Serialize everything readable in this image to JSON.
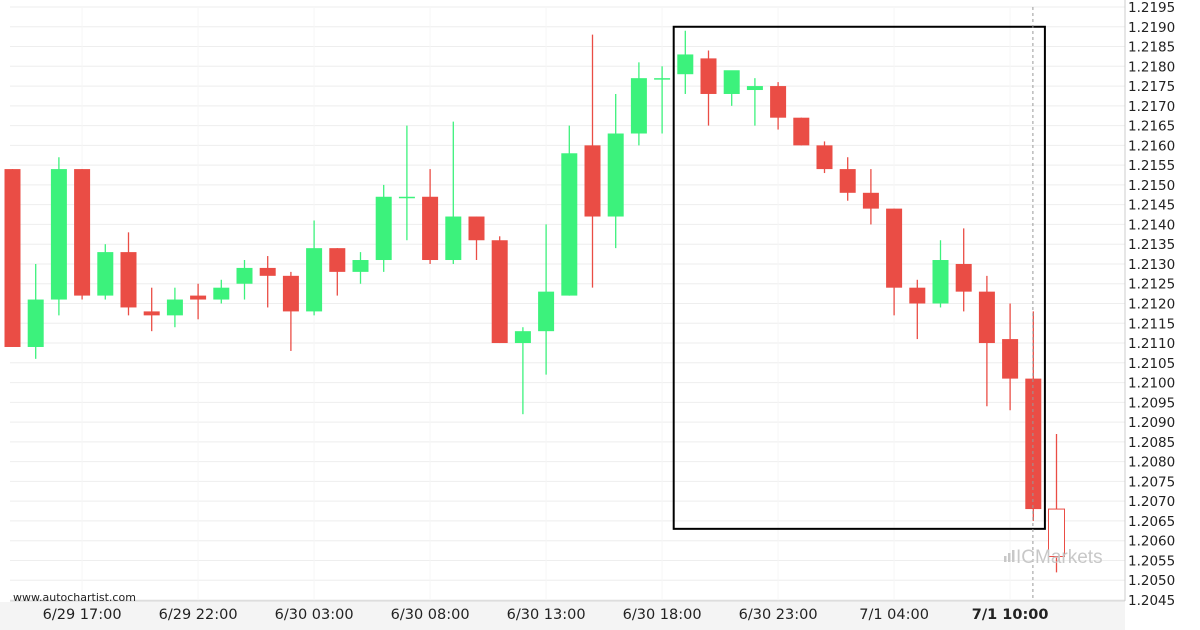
{
  "chart_data": {
    "type": "candlestick",
    "ylim": [
      1.2045,
      1.2195
    ],
    "yticks": [
      "1.2195",
      "1.2190",
      "1.2185",
      "1.2180",
      "1.2175",
      "1.2170",
      "1.2165",
      "1.2160",
      "1.2155",
      "1.2150",
      "1.2145",
      "1.2140",
      "1.2135",
      "1.2130",
      "1.2125",
      "1.2120",
      "1.2115",
      "1.2110",
      "1.2105",
      "1.2100",
      "1.2095",
      "1.2090",
      "1.2085",
      "1.2080",
      "1.2075",
      "1.2070",
      "1.2065",
      "1.2060",
      "1.2055",
      "1.2050",
      "1.2045"
    ],
    "xticks": [
      {
        "label": "6/29 17:00",
        "index": 3
      },
      {
        "label": "6/29 22:00",
        "index": 8
      },
      {
        "label": "6/30 03:00",
        "index": 13
      },
      {
        "label": "6/30 08:00",
        "index": 18
      },
      {
        "label": "6/30 13:00",
        "index": 23
      },
      {
        "label": "6/30 18:00",
        "index": 28
      },
      {
        "label": "6/30 23:00",
        "index": 33
      },
      {
        "label": "7/1 04:00",
        "index": 38
      },
      {
        "label": "7/1 10:00",
        "index": 43,
        "bold": true
      }
    ],
    "candles": [
      {
        "o": 1.2154,
        "h": 1.2154,
        "l": 1.2109,
        "c": 1.2109
      },
      {
        "o": 1.2109,
        "h": 1.213,
        "l": 1.2106,
        "c": 1.2121
      },
      {
        "o": 1.2121,
        "h": 1.2157,
        "l": 1.2117,
        "c": 1.2154
      },
      {
        "o": 1.2154,
        "h": 1.2154,
        "l": 1.2121,
        "c": 1.2122
      },
      {
        "o": 1.2122,
        "h": 1.2135,
        "l": 1.2121,
        "c": 1.2133
      },
      {
        "o": 1.2133,
        "h": 1.2138,
        "l": 1.2117,
        "c": 1.2119
      },
      {
        "o": 1.2118,
        "h": 1.2124,
        "l": 1.2113,
        "c": 1.2117
      },
      {
        "o": 1.2117,
        "h": 1.2124,
        "l": 1.2114,
        "c": 1.2121
      },
      {
        "o": 1.2122,
        "h": 1.2125,
        "l": 1.2116,
        "c": 1.2121
      },
      {
        "o": 1.2121,
        "h": 1.2126,
        "l": 1.212,
        "c": 1.2124
      },
      {
        "o": 1.2125,
        "h": 1.2131,
        "l": 1.2121,
        "c": 1.2129
      },
      {
        "o": 1.2129,
        "h": 1.2132,
        "l": 1.2119,
        "c": 1.2127
      },
      {
        "o": 1.2127,
        "h": 1.2128,
        "l": 1.2108,
        "c": 1.2118
      },
      {
        "o": 1.2118,
        "h": 1.2141,
        "l": 1.2117,
        "c": 1.2134
      },
      {
        "o": 1.2134,
        "h": 1.2134,
        "l": 1.2122,
        "c": 1.2128
      },
      {
        "o": 1.2128,
        "h": 1.2133,
        "l": 1.2125,
        "c": 1.2131
      },
      {
        "o": 1.2131,
        "h": 1.215,
        "l": 1.2128,
        "c": 1.2147
      },
      {
        "o": 1.2147,
        "h": 1.2165,
        "l": 1.2136,
        "c": 1.2147
      },
      {
        "o": 1.2147,
        "h": 1.2154,
        "l": 1.213,
        "c": 1.2131
      },
      {
        "o": 1.2131,
        "h": 1.2166,
        "l": 1.213,
        "c": 1.2142
      },
      {
        "o": 1.2142,
        "h": 1.2142,
        "l": 1.2131,
        "c": 1.2136
      },
      {
        "o": 1.2136,
        "h": 1.2137,
        "l": 1.211,
        "c": 1.211
      },
      {
        "o": 1.211,
        "h": 1.2114,
        "l": 1.2092,
        "c": 1.2113
      },
      {
        "o": 1.2113,
        "h": 1.214,
        "l": 1.2102,
        "c": 1.2123
      },
      {
        "o": 1.2122,
        "h": 1.2165,
        "l": 1.2122,
        "c": 1.2158
      },
      {
        "o": 1.216,
        "h": 1.2188,
        "l": 1.2124,
        "c": 1.2142
      },
      {
        "o": 1.2142,
        "h": 1.2173,
        "l": 1.2134,
        "c": 1.2163
      },
      {
        "o": 1.2163,
        "h": 1.2181,
        "l": 1.216,
        "c": 1.2177
      },
      {
        "o": 1.2177,
        "h": 1.218,
        "l": 1.2163,
        "c": 1.2177
      },
      {
        "o": 1.2178,
        "h": 1.2189,
        "l": 1.2173,
        "c": 1.2183
      },
      {
        "o": 1.2182,
        "h": 1.2184,
        "l": 1.2165,
        "c": 1.2173
      },
      {
        "o": 1.2173,
        "h": 1.2178,
        "l": 1.217,
        "c": 1.2179
      },
      {
        "o": 1.2174,
        "h": 1.2177,
        "l": 1.2165,
        "c": 1.2175
      },
      {
        "o": 1.2175,
        "h": 1.2176,
        "l": 1.2164,
        "c": 1.2167
      },
      {
        "o": 1.2167,
        "h": 1.2167,
        "l": 1.216,
        "c": 1.216
      },
      {
        "o": 1.216,
        "h": 1.2161,
        "l": 1.2153,
        "c": 1.2154
      },
      {
        "o": 1.2154,
        "h": 1.2157,
        "l": 1.2146,
        "c": 1.2148
      },
      {
        "o": 1.2148,
        "h": 1.2154,
        "l": 1.214,
        "c": 1.2144
      },
      {
        "o": 1.2144,
        "h": 1.2144,
        "l": 1.2117,
        "c": 1.2124
      },
      {
        "o": 1.2124,
        "h": 1.2126,
        "l": 1.2111,
        "c": 1.212
      },
      {
        "o": 1.212,
        "h": 1.2136,
        "l": 1.2119,
        "c": 1.2131
      },
      {
        "o": 1.213,
        "h": 1.2139,
        "l": 1.2118,
        "c": 1.2123
      },
      {
        "o": 1.2123,
        "h": 1.2127,
        "l": 1.2094,
        "c": 1.211
      },
      {
        "o": 1.2111,
        "h": 1.212,
        "l": 1.2093,
        "c": 1.2101
      },
      {
        "o": 1.2101,
        "h": 1.2118,
        "l": 1.2065,
        "c": 1.2068
      },
      {
        "o": 1.2068,
        "h": 1.2087,
        "l": 1.2052,
        "c": 1.2056,
        "hollow": true
      }
    ],
    "pattern_box": {
      "from_index": 28.5,
      "to_index": 44.5,
      "top": 1.219,
      "bottom": 1.2063
    },
    "current_index": 44.5,
    "colors": {
      "up": "#3cf27c",
      "down": "#ea4d45",
      "box": "#000000",
      "cursor": "#999999",
      "grid": "#eeeeee"
    }
  },
  "watermark": {
    "text": "www.autochartist.com"
  },
  "brand": {
    "text": "ICMarkets"
  }
}
